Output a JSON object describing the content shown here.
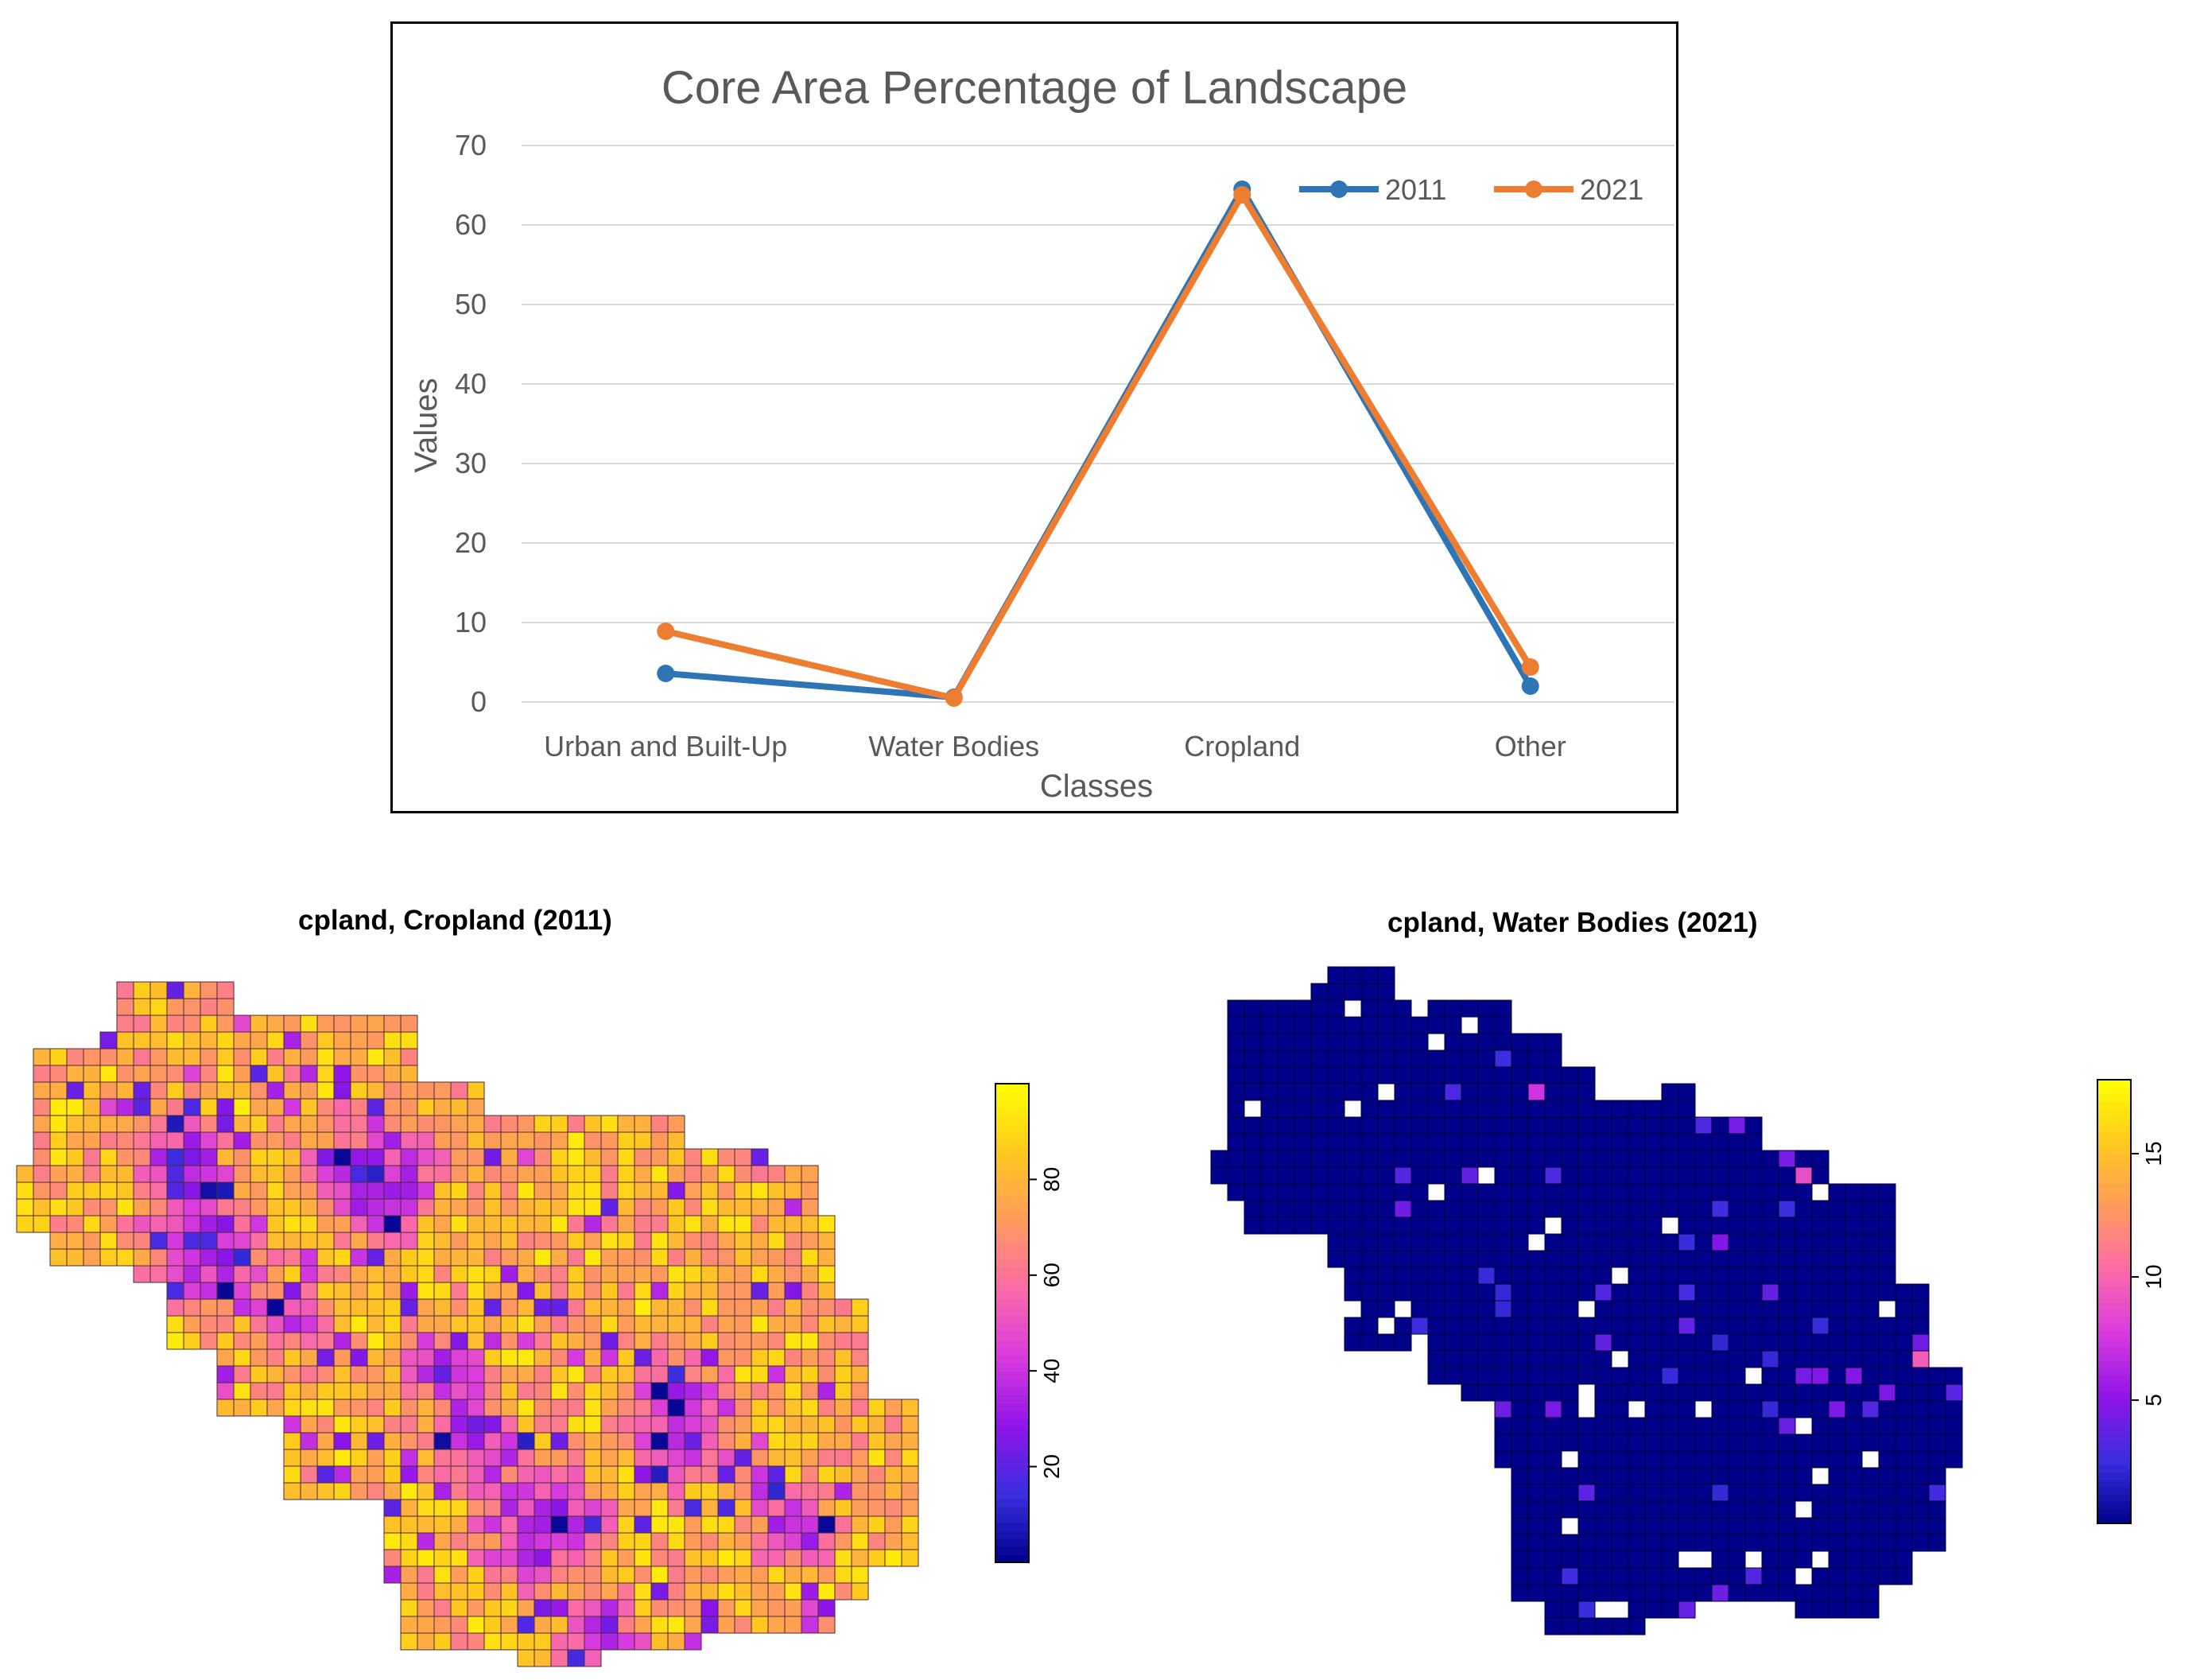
{
  "chart_data": [
    {
      "type": "line",
      "title": "Core Area Percentage of Landscape",
      "xlabel": "Classes",
      "ylabel": "Values",
      "categories": [
        "Urban and Built-Up",
        "Water Bodies",
        "Cropland",
        "Other"
      ],
      "ylim": [
        0,
        70
      ],
      "yticks": [
        0,
        10,
        20,
        30,
        40,
        50,
        60,
        70
      ],
      "grid": true,
      "legend_position": "top-right",
      "series": [
        {
          "name": "2011",
          "values": [
            3.6,
            0.6,
            64.5,
            2.0
          ],
          "color": "#2e75b6"
        },
        {
          "name": "2021",
          "values": [
            8.9,
            0.5,
            63.8,
            4.4
          ],
          "color": "#ed7d31"
        }
      ]
    },
    {
      "type": "heatmap",
      "title": "cpland, Cropland (2011)",
      "legend_ticks": [
        20,
        40,
        60,
        80
      ],
      "range": [
        0,
        100
      ],
      "colormap": [
        "#00008b",
        "#3a2ee0",
        "#8f14e8",
        "#d83adf",
        "#fb6aa8",
        "#ff9a5c",
        "#ffc81f",
        "#ffff00"
      ]
    },
    {
      "type": "heatmap",
      "title": "cpland, Water Bodies (2021)",
      "legend_ticks": [
        5,
        10,
        15
      ],
      "range": [
        0,
        18
      ],
      "colormap": [
        "#00008b",
        "#3a2ee0",
        "#8f14e8",
        "#d83adf",
        "#fb6aa8",
        "#ff9a5c",
        "#ffc81f",
        "#ffff00"
      ]
    }
  ]
}
